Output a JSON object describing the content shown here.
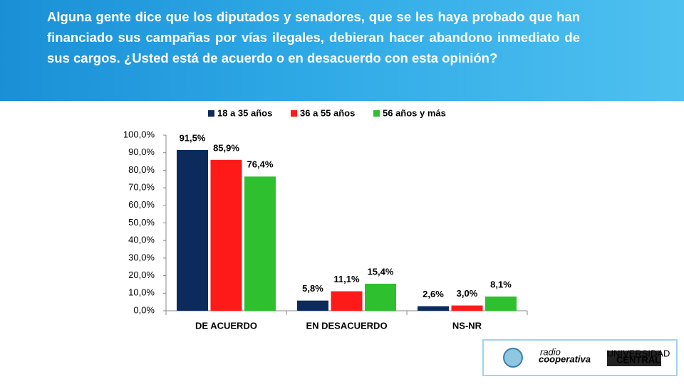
{
  "chart_data": {
    "type": "bar",
    "title": "Alguna gente dice que los diputados y senadores,  que se les haya probado que han financiado sus campañas por vías ilegales, debieran hacer abandono inmediato de sus cargos. ¿Usted está de acuerdo o en desacuerdo con esta opinión?",
    "categories": [
      "DE ACUERDO",
      "EN DESACUERDO",
      "NS-NR"
    ],
    "series": [
      {
        "name": "18 a 35 años",
        "color": "#0d2a5c",
        "values": [
          91.5,
          5.8,
          2.6
        ],
        "value_labels": [
          "91,5%",
          "5,8%",
          "2,6%"
        ]
      },
      {
        "name": "36 a 55 años",
        "color": "#ff1a1a",
        "values": [
          85.9,
          11.1,
          3.0
        ],
        "value_labels": [
          "85,9%",
          "11,1%",
          "3,0%"
        ]
      },
      {
        "name": "56 años y más",
        "color": "#2ec02e",
        "values": [
          76.4,
          15.4,
          8.1
        ],
        "value_labels": [
          "76,4%",
          "15,4%",
          "8,1%"
        ]
      }
    ],
    "ylim": [
      0,
      100
    ],
    "yticks": [
      {
        "value": 0,
        "label": "0,0%"
      },
      {
        "value": 10,
        "label": "10,0%"
      },
      {
        "value": 20,
        "label": "20,0%"
      },
      {
        "value": 30,
        "label": "30,0%"
      },
      {
        "value": 40,
        "label": "40,0%"
      },
      {
        "value": 50,
        "label": "50,0%"
      },
      {
        "value": 60,
        "label": "60,0%"
      },
      {
        "value": 70,
        "label": "70,0%"
      },
      {
        "value": 80,
        "label": "80,0%"
      },
      {
        "value": 90,
        "label": "90,0%"
      },
      {
        "value": 100,
        "label": "100,0%"
      }
    ],
    "legend": "top",
    "logos": [
      "radio",
      "cooperativa",
      "UNIVERSIDAD",
      "CENTRAL"
    ]
  }
}
